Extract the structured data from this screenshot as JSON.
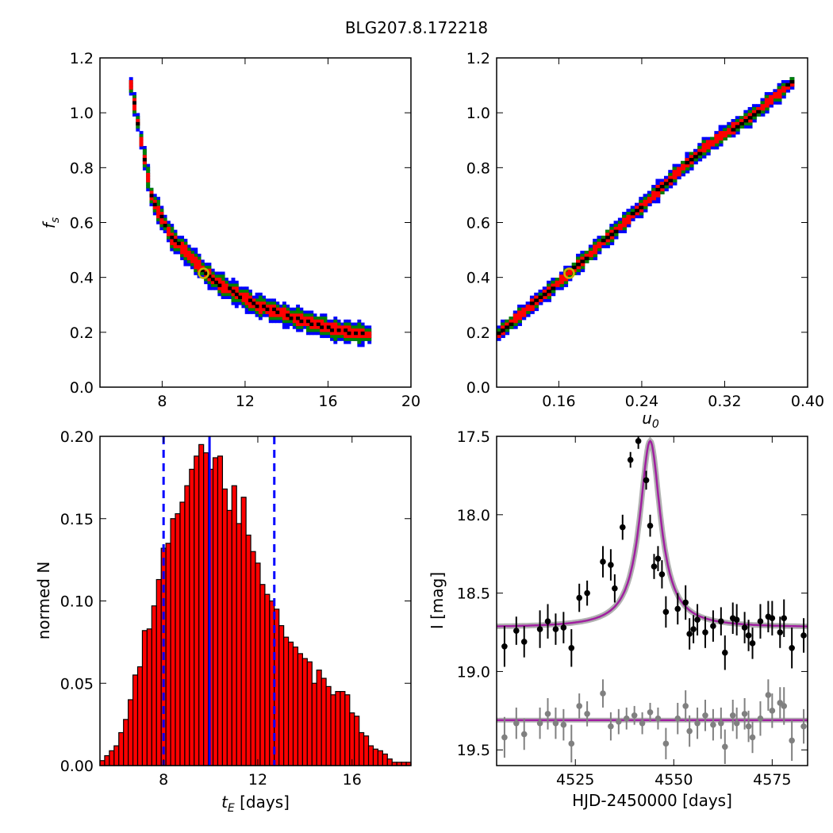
{
  "title": "BLG207.8.172218",
  "chart_data": [
    {
      "id": "fs_vs_tE",
      "type": "heatmap",
      "ylabel": "f_s",
      "xlim": [
        5,
        20
      ],
      "ylim": [
        0,
        1.2
      ],
      "xticks": [
        "8",
        "12",
        "16",
        "20"
      ],
      "yticks": [
        "0.0",
        "0.2",
        "0.4",
        "0.6",
        "0.8",
        "1.0",
        "1.2"
      ],
      "levels": [
        {
          "name": "outer",
          "color": "#0000ff"
        },
        {
          "name": "middle",
          "color": "#008000"
        },
        {
          "name": "inner",
          "color": "#ff0000"
        },
        {
          "name": "core",
          "color": "#000000"
        }
      ],
      "ridge": [
        [
          6.5,
          1.1
        ],
        [
          7.5,
          0.69
        ],
        [
          8.5,
          0.54
        ],
        [
          10.5,
          0.39
        ],
        [
          12.5,
          0.3
        ],
        [
          14.5,
          0.25
        ],
        [
          16.3,
          0.21
        ],
        [
          18,
          0.19
        ]
      ],
      "widths": {
        "outer": 0.045,
        "middle": 0.032,
        "inner": 0.02,
        "core": 0.007
      },
      "best_fit": {
        "x": 10.0,
        "y": 0.415,
        "color": "#c8b400"
      }
    },
    {
      "id": "fs_vs_u0",
      "type": "heatmap",
      "xlabel": "u_0",
      "xlim": [
        0.1,
        0.4
      ],
      "ylim": [
        0,
        1.2
      ],
      "xticks": [
        "0.16",
        "0.24",
        "0.32",
        "0.40"
      ],
      "yticks": [
        "0.0",
        "0.2",
        "0.4",
        "0.6",
        "0.8",
        "1.0",
        "1.2"
      ],
      "ridge": [
        [
          0.102,
          0.195
        ],
        [
          0.17,
          0.415
        ],
        [
          0.24,
          0.66
        ],
        [
          0.3,
          0.87
        ],
        [
          0.35,
          1.0
        ],
        [
          0.385,
          1.11
        ]
      ],
      "widths": {
        "outer": 0.035,
        "middle": 0.024,
        "inner": 0.016,
        "core": 0.006
      },
      "best_fit": {
        "x": 0.17,
        "y": 0.415,
        "color": "#c8b400"
      }
    },
    {
      "id": "tE_hist",
      "type": "bar",
      "xlabel": "t_E [days]",
      "ylabel": "normed N",
      "xlim": [
        5.3,
        18.5
      ],
      "ylim": [
        0,
        0.2
      ],
      "xticks": [
        "8",
        "12",
        "16"
      ],
      "yticks": [
        "0.00",
        "0.05",
        "0.10",
        "0.15",
        "0.20"
      ],
      "bin_start": 5.3,
      "bin_width": 0.2,
      "bar_color": "#ff0000",
      "values": [
        0.003,
        0.006,
        0.009,
        0.012,
        0.02,
        0.028,
        0.04,
        0.055,
        0.06,
        0.082,
        0.083,
        0.097,
        0.113,
        0.132,
        0.135,
        0.15,
        0.153,
        0.16,
        0.17,
        0.18,
        0.188,
        0.195,
        0.19,
        0.18,
        0.187,
        0.188,
        0.168,
        0.155,
        0.17,
        0.147,
        0.163,
        0.14,
        0.13,
        0.123,
        0.11,
        0.104,
        0.1,
        0.095,
        0.085,
        0.078,
        0.075,
        0.072,
        0.068,
        0.065,
        0.063,
        0.05,
        0.058,
        0.053,
        0.048,
        0.043,
        0.045,
        0.045,
        0.043,
        0.032,
        0.03,
        0.02,
        0.018,
        0.012,
        0.01,
        0.009,
        0.007,
        0.004,
        0.002,
        0.002,
        0.002,
        0.002
      ],
      "median_line": 9.95,
      "bounds_lines": [
        8.0,
        12.7
      ],
      "line_color": "#0000ff"
    },
    {
      "id": "lightcurve",
      "type": "scatter",
      "xlabel": "HJD-2450000 [days]",
      "ylabel": "I [mag]",
      "xlim": [
        4505,
        4584
      ],
      "ylim": [
        19.6,
        17.5
      ],
      "xticks": [
        "4525",
        "4550",
        "4575"
      ],
      "yticks": [
        "17.5",
        "18.0",
        "18.5",
        "19.0",
        "19.5"
      ],
      "model": {
        "t0": 4544,
        "peak": 17.53,
        "base": 18.72,
        "tau": 3.2,
        "color": "#a020a0"
      },
      "residual_baseline": 19.31,
      "series": [
        {
          "name": "data",
          "color": "#000000",
          "points": [
            [
              4507,
              18.84,
              0.13
            ],
            [
              4510,
              18.74,
              0.09
            ],
            [
              4512,
              18.81,
              0.1
            ],
            [
              4516,
              18.73,
              0.12
            ],
            [
              4518,
              18.68,
              0.11
            ],
            [
              4520,
              18.73,
              0.1
            ],
            [
              4522,
              18.72,
              0.1
            ],
            [
              4524,
              18.85,
              0.12
            ],
            [
              4526,
              18.53,
              0.09
            ],
            [
              4528,
              18.5,
              0.08
            ],
            [
              4532,
              18.3,
              0.1
            ],
            [
              4534,
              18.32,
              0.1
            ],
            [
              4535,
              18.47,
              0.09
            ],
            [
              4537,
              18.08,
              0.08
            ],
            [
              4539,
              17.65,
              0.05
            ],
            [
              4541,
              17.53,
              0.05
            ],
            [
              4543,
              17.78,
              0.06
            ],
            [
              4544,
              18.07,
              0.07
            ],
            [
              4545,
              18.33,
              0.08
            ],
            [
              4546,
              18.28,
              0.08
            ],
            [
              4547,
              18.38,
              0.09
            ],
            [
              4548,
              18.62,
              0.1
            ],
            [
              4551,
              18.6,
              0.1
            ],
            [
              4553,
              18.56,
              0.11
            ],
            [
              4554,
              18.76,
              0.1
            ],
            [
              4555,
              18.73,
              0.09
            ],
            [
              4556,
              18.67,
              0.1
            ],
            [
              4558,
              18.75,
              0.1
            ],
            [
              4560,
              18.71,
              0.1
            ],
            [
              4562,
              18.68,
              0.09
            ],
            [
              4563,
              18.88,
              0.11
            ],
            [
              4565,
              18.66,
              0.1
            ],
            [
              4566,
              18.67,
              0.1
            ],
            [
              4568,
              18.72,
              0.1
            ],
            [
              4569,
              18.77,
              0.1
            ],
            [
              4570,
              18.82,
              0.1
            ],
            [
              4572,
              18.68,
              0.11
            ],
            [
              4574,
              18.65,
              0.1
            ],
            [
              4575,
              18.66,
              0.11
            ],
            [
              4577,
              18.75,
              0.1
            ],
            [
              4578,
              18.66,
              0.12
            ],
            [
              4580,
              18.85,
              0.13
            ],
            [
              4583,
              18.77,
              0.11
            ]
          ]
        },
        {
          "name": "residuals",
          "color": "#808080",
          "points": [
            [
              4507,
              19.42,
              0.13
            ],
            [
              4510,
              19.33,
              0.1
            ],
            [
              4512,
              19.4,
              0.1
            ],
            [
              4516,
              19.33,
              0.1
            ],
            [
              4518,
              19.27,
              0.1
            ],
            [
              4520,
              19.33,
              0.1
            ],
            [
              4522,
              19.34,
              0.1
            ],
            [
              4524,
              19.46,
              0.12
            ],
            [
              4526,
              19.22,
              0.08
            ],
            [
              4528,
              19.27,
              0.08
            ],
            [
              4532,
              19.14,
              0.09
            ],
            [
              4534,
              19.35,
              0.09
            ],
            [
              4536,
              19.32,
              0.08
            ],
            [
              4538,
              19.3,
              0.07
            ],
            [
              4540,
              19.28,
              0.06
            ],
            [
              4542,
              19.33,
              0.07
            ],
            [
              4544,
              19.26,
              0.06
            ],
            [
              4546,
              19.3,
              0.07
            ],
            [
              4548,
              19.46,
              0.1
            ],
            [
              4551,
              19.3,
              0.1
            ],
            [
              4553,
              19.22,
              0.1
            ],
            [
              4554,
              19.38,
              0.1
            ],
            [
              4556,
              19.33,
              0.1
            ],
            [
              4558,
              19.28,
              0.1
            ],
            [
              4560,
              19.34,
              0.1
            ],
            [
              4562,
              19.33,
              0.1
            ],
            [
              4563,
              19.48,
              0.11
            ],
            [
              4565,
              19.28,
              0.1
            ],
            [
              4566,
              19.33,
              0.1
            ],
            [
              4568,
              19.27,
              0.1
            ],
            [
              4569,
              19.35,
              0.1
            ],
            [
              4570,
              19.42,
              0.1
            ],
            [
              4572,
              19.3,
              0.11
            ],
            [
              4574,
              19.15,
              0.1
            ],
            [
              4575,
              19.25,
              0.11
            ],
            [
              4577,
              19.2,
              0.1
            ],
            [
              4578,
              19.22,
              0.12
            ],
            [
              4580,
              19.44,
              0.13
            ],
            [
              4583,
              19.35,
              0.11
            ]
          ]
        }
      ]
    }
  ]
}
